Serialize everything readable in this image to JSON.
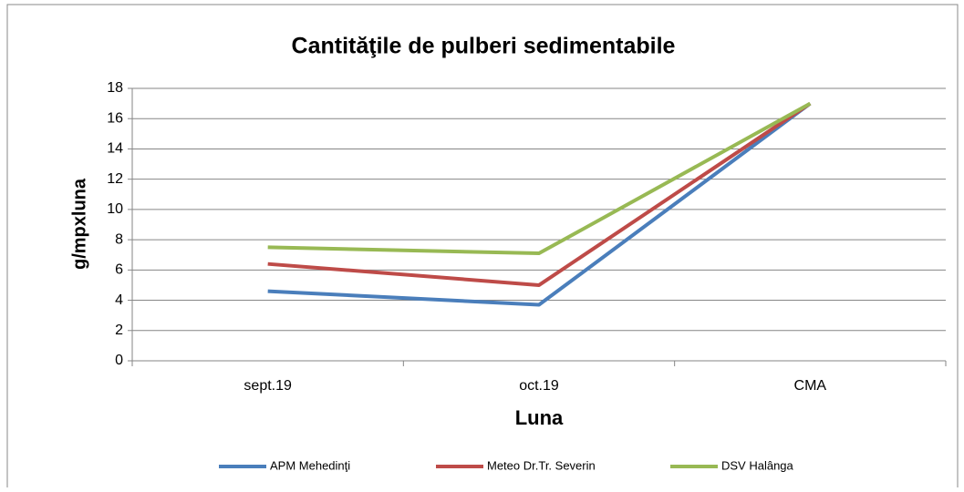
{
  "chart_data": {
    "type": "line",
    "title": "Cantităţile de  pulberi sedimentabile",
    "x_label": "Luna",
    "y_label": "g/mpxluna",
    "categories": [
      "sept.19",
      "oct.19",
      "CMA"
    ],
    "series": [
      {
        "name": "APM Mehedinţi",
        "color": "#4a7ebb",
        "values": [
          4.6,
          3.7,
          17
        ]
      },
      {
        "name": "Meteo Dr.Tr. Severin",
        "color": "#be4b48",
        "values": [
          6.4,
          5.0,
          17
        ]
      },
      {
        "name": "DSV Halânga",
        "color": "#98b954",
        "values": [
          7.5,
          7.1,
          17
        ]
      }
    ],
    "ylim": [
      0,
      18
    ],
    "yticks": [
      0,
      2,
      4,
      6,
      8,
      10,
      12,
      14,
      16,
      18
    ],
    "grid": true,
    "legend": "bottom"
  }
}
